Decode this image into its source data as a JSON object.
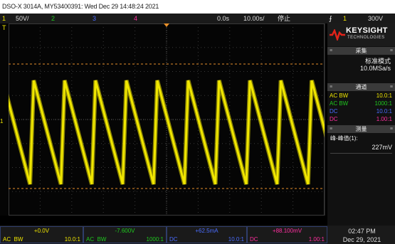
{
  "title_bar": "DSO-X 3014A, MY53400391: Wed Dec 29 14:48:24 2021",
  "status": {
    "ch1_num": "1",
    "ch1_scale": "50V/",
    "ch2_num": "2",
    "ch3_num": "3",
    "ch4_num": "4",
    "time_offset": "0.0s",
    "time_scale": "10.00s/",
    "run_state": "停止",
    "trigger_symbol": "⨍",
    "trigger_ch": "1",
    "trigger_level": "300V"
  },
  "colors": {
    "ch1": "#f0e600",
    "ch2": "#1fc81f",
    "ch3": "#4a6cff",
    "ch4": "#ff2fa0"
  },
  "panel": {
    "brand": "KEYSIGHT",
    "brand_sub": "TECHNOLOGIES",
    "acq_header": "采集",
    "acq_mode": "标准模式",
    "acq_rate": "10.0MSa/s",
    "ch_header": "通道",
    "channels": [
      {
        "coupling": "AC BW",
        "ratio": "10.0:1"
      },
      {
        "coupling": "AC BW",
        "ratio": "1000:1"
      },
      {
        "coupling": "DC",
        "ratio": "10.0:1"
      },
      {
        "coupling": "DC",
        "ratio": "1.00:1"
      }
    ],
    "meas_header": "测量",
    "meas_label": "峰-峰值(1):",
    "meas_value": "227mV"
  },
  "markers": {
    "ch1_ground": "1",
    "trigger_t": "T"
  },
  "bottom": {
    "ch1": {
      "value": "+0.0V",
      "coupling": "AC",
      "bw": "BW",
      "ratio": "10.0:1"
    },
    "ch2": {
      "value": "-7.600V",
      "coupling": "AC",
      "bw": "BW",
      "ratio": "1000:1"
    },
    "ch3": {
      "value": "+62.5mA",
      "coupling": "DC",
      "ratio": "10.0:1"
    },
    "ch4": {
      "value": "+88.100mV",
      "coupling": "DC",
      "ratio": "1.00:1"
    },
    "time": "02:47 PM",
    "date": "Dec 29, 2021"
  },
  "waveform": {
    "cycles": 10,
    "shape": "sawtooth"
  }
}
